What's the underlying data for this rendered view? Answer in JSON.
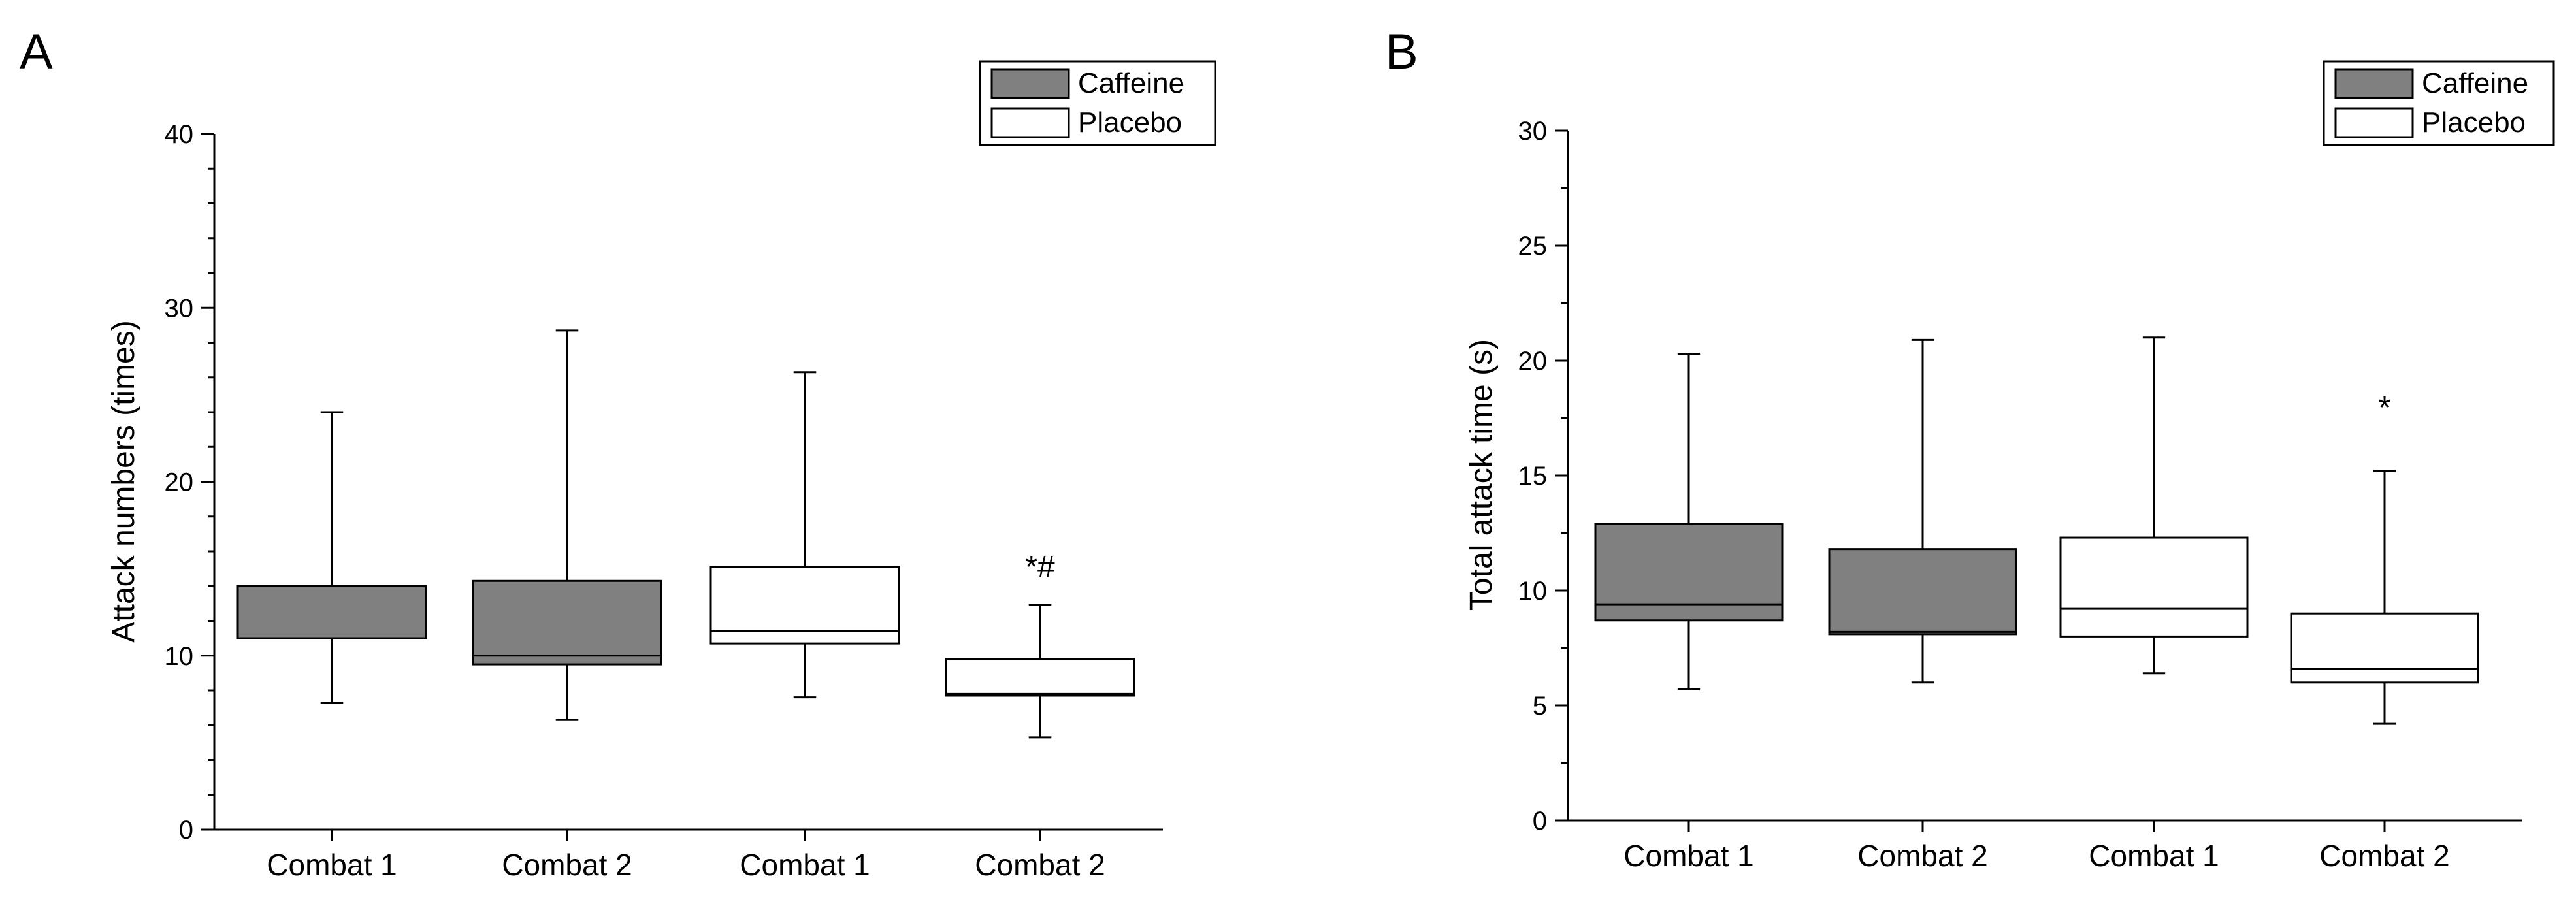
{
  "chart_data": [
    {
      "panel_label": "A",
      "type": "box",
      "title": "",
      "xlabel": "",
      "ylabel": "Attack numbers (times)",
      "ylim": [
        0,
        40
      ],
      "yticks": [
        0,
        10,
        20,
        30,
        40
      ],
      "y_minor_step": 2,
      "grid": false,
      "legend_position": "top-right",
      "legend": [
        {
          "name": "Caffeine",
          "fill": "#808080"
        },
        {
          "name": "Placebo",
          "fill": "#ffffff"
        }
      ],
      "categories": [
        "Combat 1",
        "Combat 2",
        "Combat 1",
        "Combat 2"
      ],
      "boxes": [
        {
          "series": "Caffeine",
          "category": "Combat 1",
          "min": 7.3,
          "q1": 11.0,
          "median": 11.0,
          "q3": 14.0,
          "max": 24.0
        },
        {
          "series": "Caffeine",
          "category": "Combat 2",
          "min": 6.3,
          "q1": 9.5,
          "median": 10.0,
          "q3": 14.3,
          "max": 28.7
        },
        {
          "series": "Placebo",
          "category": "Combat 1",
          "min": 7.6,
          "q1": 10.7,
          "median": 11.4,
          "q3": 15.1,
          "max": 26.3
        },
        {
          "series": "Placebo",
          "category": "Combat 2",
          "min": 5.3,
          "q1": 7.7,
          "median": 7.8,
          "q3": 9.8,
          "max": 12.9
        }
      ],
      "annotations": [
        {
          "text": "*#",
          "category_index": 3,
          "y": 14.5
        }
      ]
    },
    {
      "panel_label": "B",
      "type": "box",
      "title": "",
      "xlabel": "",
      "ylabel": "Total attack time (s)",
      "ylim": [
        0,
        30
      ],
      "yticks": [
        0,
        5,
        10,
        15,
        20,
        25,
        30
      ],
      "y_minor_step": 2.5,
      "grid": false,
      "legend_position": "top-right",
      "legend": [
        {
          "name": "Caffeine",
          "fill": "#808080"
        },
        {
          "name": "Placebo",
          "fill": "#ffffff"
        }
      ],
      "categories": [
        "Combat 1",
        "Combat 2",
        "Combat 1",
        "Combat 2"
      ],
      "boxes": [
        {
          "series": "Caffeine",
          "category": "Combat 1",
          "min": 5.7,
          "q1": 8.7,
          "median": 9.4,
          "q3": 12.9,
          "max": 20.3
        },
        {
          "series": "Caffeine",
          "category": "Combat 2",
          "min": 6.0,
          "q1": 8.1,
          "median": 8.2,
          "q3": 11.8,
          "max": 20.9
        },
        {
          "series": "Placebo",
          "category": "Combat 1",
          "min": 6.4,
          "q1": 8.0,
          "median": 9.2,
          "q3": 12.3,
          "max": 21.0
        },
        {
          "series": "Placebo",
          "category": "Combat 2",
          "min": 4.2,
          "q1": 6.0,
          "median": 6.6,
          "q3": 9.0,
          "max": 15.2
        }
      ],
      "annotations": [
        {
          "text": "*",
          "category_index": 3,
          "y": 17.5
        }
      ]
    }
  ]
}
